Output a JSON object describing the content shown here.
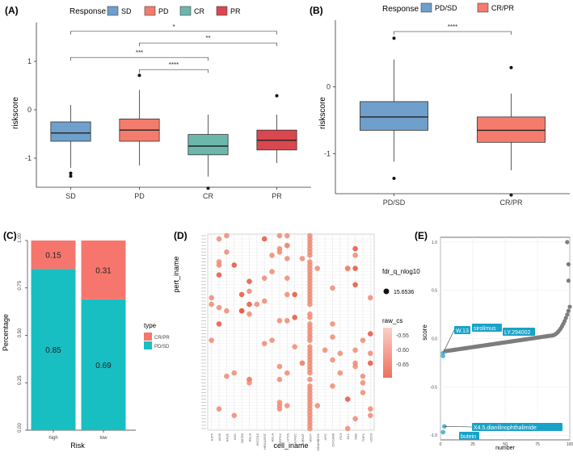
{
  "colors": {
    "sd": "#6f9fcb",
    "pd": "#f47c6c",
    "cr": "#6bb7ac",
    "pr": "#d9474f",
    "teal": "#17bfc3",
    "salmon": "#f6766d",
    "dot": "#f08a72",
    "gray": "#7d7d7d",
    "hilite": "#58b7d3",
    "labelbg": "#1aa2c6"
  },
  "chart_data": [
    {
      "panel": "(A)",
      "type": "box",
      "legend_title": "Response",
      "legend": [
        "SD",
        "PD",
        "CR",
        "PR"
      ],
      "ylabel": "riskscore",
      "xlabel": "",
      "ylim": [
        -1.6,
        1.8
      ],
      "yticks": [
        {
          "v": 1,
          "t": "1"
        },
        {
          "v": 0,
          "t": "0"
        },
        {
          "v": -1,
          "t": "-1"
        }
      ],
      "categories": [
        "SD",
        "PD",
        "CR",
        "PR"
      ],
      "boxes": [
        {
          "name": "SD",
          "lw": -1.2,
          "q1": -0.65,
          "med": -0.48,
          "q3": -0.25,
          "uw": 0.1,
          "out": [
            -1.31,
            -1.37
          ]
        },
        {
          "name": "PD",
          "lw": -1.15,
          "q1": -0.65,
          "med": -0.42,
          "q3": -0.19,
          "uw": 0.41,
          "out": [
            0.71
          ]
        },
        {
          "name": "CR",
          "lw": -1.38,
          "q1": -0.93,
          "med": -0.75,
          "q3": -0.51,
          "uw": -0.1,
          "out": [
            -1.62
          ]
        },
        {
          "name": "PR",
          "lw": -1.1,
          "q1": -0.83,
          "med": -0.63,
          "q3": -0.42,
          "uw": -0.1,
          "out": [
            0.29
          ]
        }
      ],
      "brackets": [
        {
          "from": 0,
          "to": 3,
          "y": 1.62,
          "label": "*"
        },
        {
          "from": 1,
          "to": 3,
          "y": 1.38,
          "label": "**"
        },
        {
          "from": 0,
          "to": 2,
          "y": 1.08,
          "label": "***"
        },
        {
          "from": 1,
          "to": 2,
          "y": 0.83,
          "label": "****"
        }
      ]
    },
    {
      "panel": "(B)",
      "type": "box",
      "legend_title": "Response",
      "legend": [
        "PD/SD",
        "CR/PR"
      ],
      "ylabel": "riskscore",
      "xlabel": "",
      "ylim": [
        -1.6,
        1.0
      ],
      "yticks": [
        {
          "v": 0,
          "t": "0"
        },
        {
          "v": -1,
          "t": "-1"
        }
      ],
      "categories": [
        "PD/SD",
        "CR/PR"
      ],
      "boxes": [
        {
          "name": "PD/SD",
          "lw": -1.12,
          "q1": -0.65,
          "med": -0.45,
          "q3": -0.22,
          "uw": 0.41,
          "out": [
            0.73,
            -1.37
          ]
        },
        {
          "name": "CR/PR",
          "lw": -1.25,
          "q1": -0.83,
          "med": -0.65,
          "q3": -0.45,
          "uw": -0.1,
          "out": [
            0.29,
            -1.62
          ]
        }
      ],
      "brackets": [
        {
          "from": 0,
          "to": 1,
          "y": 0.83,
          "label": "****"
        }
      ]
    },
    {
      "panel": "(C)",
      "type": "stacked-bar",
      "ylabel": "Percentage",
      "xlabel": "Risk",
      "legend_title": "type",
      "legend": [
        "CR/PR",
        "PD/SD"
      ],
      "yticks": [
        "0.00",
        "0.25",
        "0.50",
        "0.75",
        "1.00"
      ],
      "categories": [
        "high",
        "low"
      ],
      "series": [
        {
          "name": "PD/SD",
          "values": [
            0.85,
            0.69
          ]
        },
        {
          "name": "CR/PR",
          "values": [
            0.15,
            0.31
          ]
        }
      ],
      "labels": [
        [
          "0.85",
          "0.15"
        ],
        [
          "0.69",
          "0.31"
        ]
      ]
    },
    {
      "panel": "(D)",
      "type": "dot-matrix",
      "ylabel": "pert_iname",
      "xlabel": "cell_iname",
      "size_legend_title": "fdr_q_nlog10",
      "size_legend_value": "15.6536",
      "color_legend_title": "raw_cs",
      "color_legend_ticks": [
        "-0.55",
        "-0.60",
        "-0.65"
      ],
      "columns": [
        "A375",
        "A549",
        "HA1E",
        "ASC",
        "BICR6",
        "HELA",
        "HCC515",
        "HEKA293T",
        "HELA",
        "HEPG2",
        "HT29",
        "HUVEC",
        "JURKAT",
        "MCF7",
        "MDAMB231",
        "NPC",
        "OVCAR8",
        "PC3",
        "SKL",
        "SKB",
        "THP1",
        "U2OS"
      ],
      "row_count": 60
    },
    {
      "panel": "(E)",
      "type": "scatter",
      "xlabel": "number",
      "ylabel": "score",
      "xlim": [
        0,
        100
      ],
      "ylim": [
        -1.05,
        1.05
      ],
      "xticks": [
        "0",
        "25",
        "50",
        "75",
        "100"
      ],
      "yticks": [
        "1.0",
        "0.5",
        "0.0",
        "-0.5",
        "-1.0"
      ],
      "labels": [
        {
          "text": "W.13",
          "x": 1,
          "y": -0.15
        },
        {
          "text": "sirolimus",
          "x": 2,
          "y": -0.15
        },
        {
          "text": "LY.294002",
          "x": 3,
          "y": -0.17
        },
        {
          "text": "X4.5.dianilinophthalimide",
          "x": 2,
          "y": -0.91
        },
        {
          "text": "butein",
          "x": 1,
          "y": -0.97
        }
      ]
    }
  ]
}
